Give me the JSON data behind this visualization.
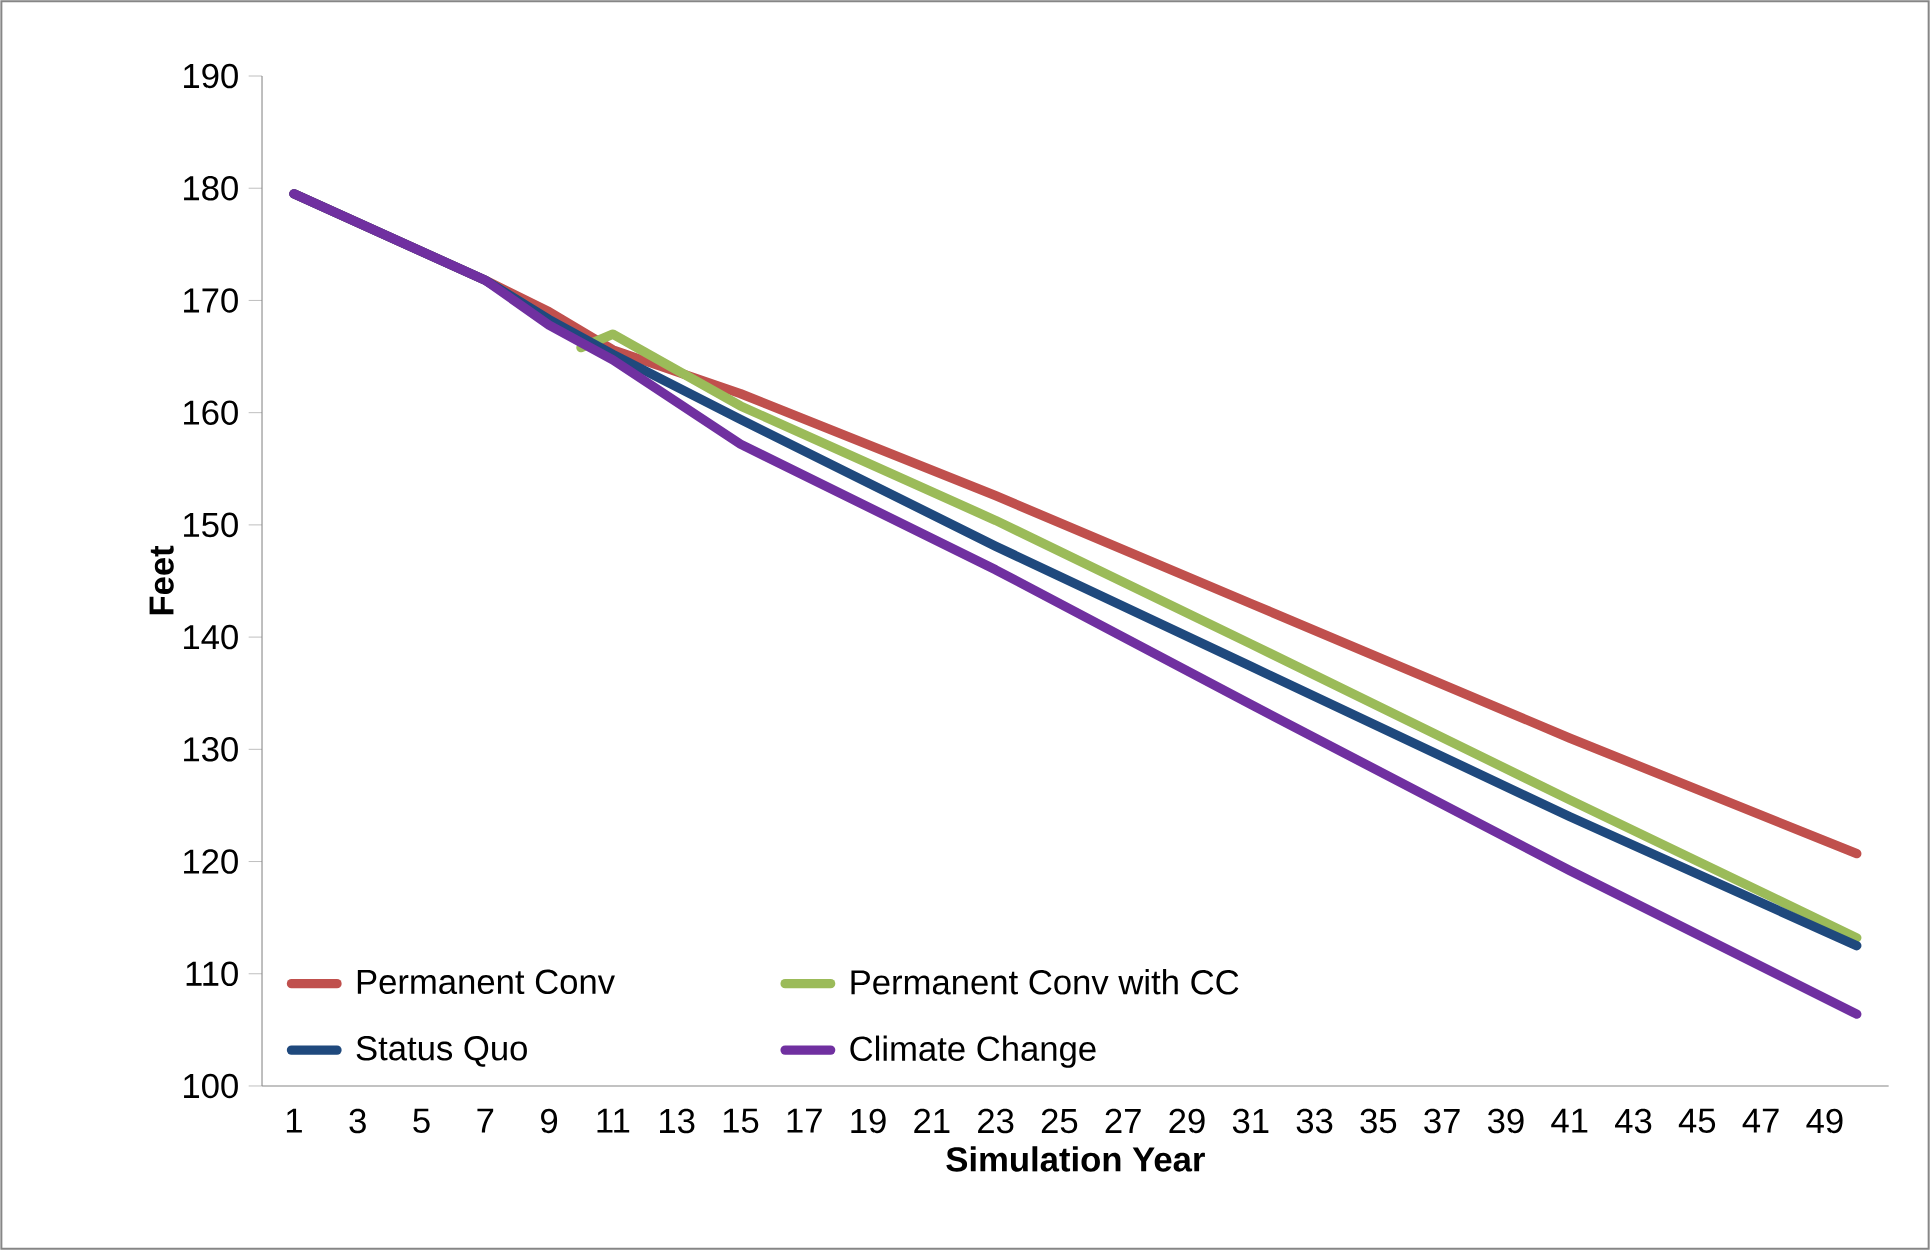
{
  "chart_data": {
    "type": "line",
    "xlabel": "Simulation Year",
    "ylabel": "Feet",
    "xlim": [
      0,
      51
    ],
    "xticks": [
      1,
      3,
      5,
      7,
      9,
      11,
      13,
      15,
      17,
      19,
      21,
      23,
      25,
      27,
      29,
      31,
      33,
      35,
      37,
      39,
      41,
      43,
      45,
      47,
      49
    ],
    "ylim": [
      100,
      190
    ],
    "yticks": [
      100,
      110,
      120,
      130,
      140,
      150,
      160,
      170,
      180,
      190
    ],
    "grid": false,
    "legend": "bottom left",
    "series": [
      {
        "name": "Permanent Conv",
        "color": "#c0504d",
        "x": [
          1,
          7,
          9,
          11,
          15,
          23,
          31,
          41,
          50
        ],
        "values": [
          179.5,
          171.8,
          169,
          165.6,
          161.7,
          152.6,
          143,
          131,
          120.7
        ]
      },
      {
        "name": "Permanent Conv with CC",
        "color": "#9bbb59",
        "x": [
          10,
          11,
          15,
          23,
          31,
          41,
          50
        ],
        "values": [
          165.8,
          167,
          160.6,
          150.4,
          139.4,
          125.5,
          113.2
        ]
      },
      {
        "name": "Status Quo",
        "color": "#1f497d",
        "x": [
          1,
          7,
          9,
          11,
          15,
          23,
          31,
          41,
          50
        ],
        "values": [
          179.5,
          171.8,
          168.3,
          165.2,
          159.4,
          148.1,
          137.4,
          124,
          112.5
        ]
      },
      {
        "name": "Climate Change",
        "color": "#7030a0",
        "x": [
          1,
          7,
          9,
          11,
          15,
          23,
          31,
          41,
          50
        ],
        "values": [
          179.5,
          171.8,
          167.8,
          164.7,
          157.2,
          146,
          134,
          119.2,
          106.4
        ]
      }
    ]
  }
}
